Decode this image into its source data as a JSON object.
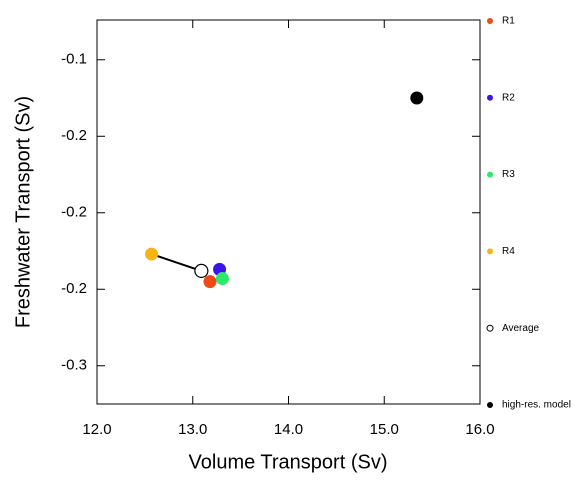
{
  "chart_data": {
    "type": "scatter",
    "xlabel": "Volume Transport (Sv)",
    "ylabel": "Freshwater Transport (Sv)",
    "xlim": [
      12.0,
      16.0
    ],
    "xticks": [
      {
        "value": 12,
        "label": "12.0"
      },
      {
        "value": 13,
        "label": "13.0"
      },
      {
        "value": 14,
        "label": "14.0"
      },
      {
        "value": 15,
        "label": "15.0"
      },
      {
        "value": 16,
        "label": "16.0"
      }
    ],
    "ylim": [
      -0.325,
      -0.074
    ],
    "yticks": [
      {
        "value": -0.1,
        "label": "-0.1"
      },
      {
        "value": -0.15,
        "label": "-0.2"
      },
      {
        "value": -0.2,
        "label": "-0.2"
      },
      {
        "value": -0.25,
        "label": "-0.2"
      },
      {
        "value": -0.3,
        "label": "-0.3"
      }
    ],
    "legend": "right",
    "line_between": [
      3,
      4
    ],
    "series": [
      {
        "name": "R1",
        "color": "#f04a18",
        "marker": "filled",
        "x": [
          13.18
        ],
        "values": [
          -0.245
        ]
      },
      {
        "name": "R2",
        "color": "#3d14e8",
        "marker": "filled",
        "x": [
          13.28
        ],
        "values": [
          -0.237
        ]
      },
      {
        "name": "R3",
        "color": "#2de86a",
        "marker": "filled",
        "x": [
          13.31
        ],
        "values": [
          -0.243
        ]
      },
      {
        "name": "R4",
        "color": "#f8b412",
        "marker": "filled",
        "x": [
          12.57
        ],
        "values": [
          -0.227
        ]
      },
      {
        "name": "Average",
        "color": "#000000",
        "marker": "open",
        "x": [
          13.09
        ],
        "values": [
          -0.238
        ]
      },
      {
        "name": "high-res. model",
        "color": "#000000",
        "marker": "filled",
        "x": [
          15.34
        ],
        "values": [
          -0.125
        ]
      }
    ]
  }
}
